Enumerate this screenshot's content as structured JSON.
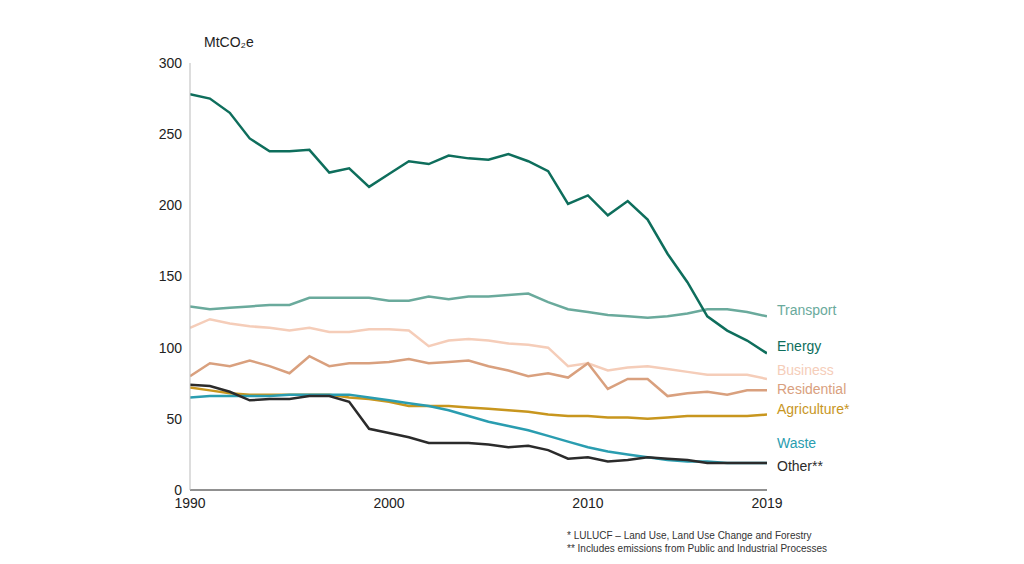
{
  "chart_data": {
    "type": "line",
    "y_label": "MtCO₂e",
    "notes": [
      "* LULUCF – Land Use, Land Use Change and Forestry",
      "** Includes emissions from Public and Industrial Processes"
    ],
    "x": [
      1990,
      1991,
      1992,
      1993,
      1994,
      1995,
      1996,
      1997,
      1998,
      1999,
      2000,
      2001,
      2002,
      2003,
      2004,
      2005,
      2006,
      2007,
      2008,
      2009,
      2010,
      2011,
      2012,
      2013,
      2014,
      2015,
      2016,
      2017,
      2018,
      2019
    ],
    "xlim": [
      1990,
      2019
    ],
    "xticks": [
      1990,
      2000,
      2010,
      2019
    ],
    "ylim": [
      0,
      300
    ],
    "yticks": [
      0,
      50,
      100,
      150,
      200,
      250,
      300
    ],
    "grid": false,
    "series": [
      {
        "name": "Transport",
        "color": "#6aaa9c",
        "values": [
          129,
          127,
          128,
          129,
          130,
          130,
          135,
          135,
          135,
          135,
          133,
          133,
          136,
          134,
          136,
          136,
          137,
          138,
          132,
          127,
          125,
          123,
          122,
          121,
          122,
          124,
          127,
          127,
          125,
          122
        ]
      },
      {
        "name": "Energy",
        "color": "#0e6e5c",
        "values": [
          278,
          275,
          265,
          247,
          238,
          238,
          239,
          223,
          226,
          213,
          222,
          231,
          229,
          235,
          233,
          232,
          236,
          231,
          224,
          201,
          207,
          193,
          203,
          190,
          166,
          146,
          122,
          112,
          105,
          96
        ]
      },
      {
        "name": "Business",
        "color": "#f5cdb9",
        "values": [
          114,
          120,
          117,
          115,
          114,
          112,
          114,
          111,
          111,
          113,
          113,
          112,
          101,
          105,
          106,
          105,
          103,
          102,
          100,
          87,
          89,
          84,
          86,
          87,
          85,
          83,
          81,
          81,
          81,
          78
        ]
      },
      {
        "name": "Residential",
        "color": "#d9a07e",
        "values": [
          80,
          89,
          87,
          91,
          87,
          82,
          94,
          87,
          89,
          89,
          90,
          92,
          89,
          90,
          91,
          87,
          84,
          80,
          82,
          79,
          89,
          71,
          78,
          78,
          66,
          68,
          69,
          67,
          70,
          70
        ]
      },
      {
        "name": "Agriculture*",
        "color": "#c8961e",
        "values": [
          72,
          70,
          68,
          67,
          67,
          67,
          67,
          67,
          65,
          64,
          62,
          59,
          59,
          59,
          58,
          57,
          56,
          55,
          53,
          52,
          52,
          51,
          51,
          50,
          51,
          52,
          52,
          52,
          52,
          53
        ]
      },
      {
        "name": "Waste",
        "color": "#2a9db0",
        "values": [
          65,
          66,
          66,
          66,
          66,
          67,
          67,
          67,
          67,
          65,
          63,
          61,
          59,
          56,
          52,
          48,
          45,
          42,
          38,
          34,
          30,
          27,
          25,
          23,
          21,
          20,
          20,
          19,
          19,
          19
        ]
      },
      {
        "name": "Other**",
        "color": "#2b2b2b",
        "values": [
          74,
          73,
          69,
          63,
          64,
          64,
          66,
          66,
          62,
          43,
          40,
          37,
          33,
          33,
          33,
          32,
          30,
          31,
          28,
          22,
          23,
          20,
          21,
          23,
          22,
          21,
          19,
          19,
          19,
          19
        ]
      }
    ]
  }
}
